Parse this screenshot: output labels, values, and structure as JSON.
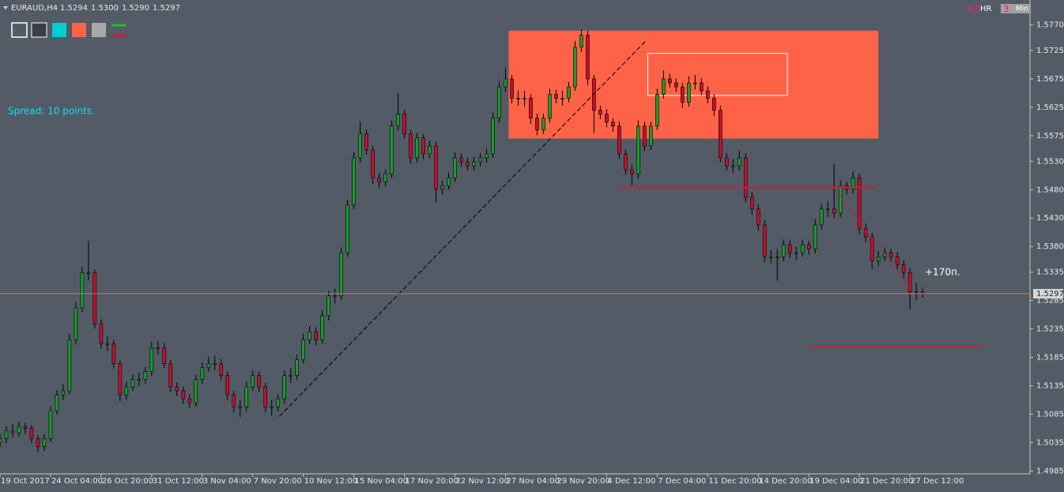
{
  "chart_data": {
    "type": "candlestick",
    "title": "EURAUD,H4",
    "quote": [
      1.5294,
      {
        "value": 1.53,
        "label": "1.5300"
      },
      {
        "value": 1.529,
        "label": "1.5290"
      },
      1.5297
    ],
    "toolbar": [
      "03",
      "HR",
      "3",
      "Min"
    ],
    "annotations": [
      {
        "text": "Spread: 10 points.",
        "color": "#00e5ee"
      },
      {
        "text": "+170п.",
        "color": "#ffffff"
      }
    ],
    "bull_color": "#1a9c2a",
    "bear_color": "#c8102e",
    "wick_color": "#000000",
    "price_line_color": "#ff6a1a",
    "xlim": [
      0,
      163
    ],
    "ylim": [
      1.498,
      1.5775
    ],
    "yticks": [
      {
        "value": 1.577,
        "label": "1.5770"
      },
      1.5725,
      1.5675,
      1.5625,
      1.5575,
      {
        "value": 1.553,
        "label": "1.5530"
      },
      {
        "value": 1.548,
        "label": "1.5480"
      },
      {
        "value": 1.543,
        "label": "1.5430"
      },
      {
        "value": 1.538,
        "label": "1.5380"
      },
      1.5335,
      1.5285,
      1.5235,
      1.5185,
      1.5135,
      1.5085,
      1.5035,
      1.4985
    ],
    "xticks": [
      {
        "value": 0,
        "label": "19 Oct 2017"
      },
      {
        "value": 8,
        "label": "24 Oct 04:00"
      },
      {
        "value": 16,
        "label": "26 Oct 20:00"
      },
      {
        "value": 24,
        "label": "31 Oct 12:00"
      },
      {
        "value": 32,
        "label": "3 Nov 04:00"
      },
      {
        "value": 40,
        "label": "7 Nov 20:00"
      },
      {
        "value": 48,
        "label": "10 Nov 12:00"
      },
      {
        "value": 56,
        "label": "15 Nov 04:00"
      },
      {
        "value": 64,
        "label": "17 Nov 20:00"
      },
      {
        "value": 72,
        "label": "22 Nov 12:00"
      },
      {
        "value": 80,
        "label": "27 Nov 04:00"
      },
      {
        "value": 88,
        "label": "29 Nov 20:00"
      },
      {
        "value": 96,
        "label": "4 Dec 12:00"
      },
      {
        "value": 104,
        "label": "7 Dec 04:00"
      },
      {
        "value": 112,
        "label": "11 Dec 20:00"
      },
      {
        "value": 120,
        "label": "14 Dec 20:00"
      },
      {
        "value": 128,
        "label": "19 Dec 04:00"
      },
      {
        "value": 136,
        "label": "21 Dec 20:00"
      },
      {
        "value": 144,
        "label": "27 Dec 12:00"
      }
    ],
    "open": [
      1.5035,
      1.5042,
      1.5056,
      1.5052,
      1.5063,
      1.506,
      1.5042,
      1.5028,
      1.5042,
      1.5091,
      1.5119,
      1.5126,
      1.5216,
      1.5272,
      1.5334,
      1.5334,
      1.5244,
      1.5209,
      1.5209,
      1.5174,
      1.5119,
      1.5133,
      1.5146,
      1.5146,
      1.516,
      1.5202,
      1.5202,
      1.5174,
      1.5133,
      1.5126,
      1.5112,
      1.5105,
      1.5146,
      1.5167,
      1.5174,
      1.5174,
      1.5153,
      1.5119,
      1.5098,
      1.5098,
      1.5133,
      1.5153,
      1.5133,
      1.5098,
      1.5098,
      1.5112,
      1.5153,
      1.5153,
      1.5181,
      1.5216,
      1.523,
      1.5216,
      1.5258,
      1.5293,
      1.5293,
      1.5369,
      1.5453,
      1.5536,
      1.5578,
      1.555,
      1.5501,
      1.5494,
      1.5508,
      1.5592,
      1.5613,
      1.5578,
      1.5536,
      1.5571,
      1.5543,
      1.5557,
      1.5481,
      1.5487,
      1.5501,
      1.5536,
      1.5529,
      1.5522,
      1.5529,
      1.5536,
      1.5543,
      1.5606,
      1.5661,
      1.5675,
      1.5641,
      1.5641,
      1.5641,
      1.5606,
      1.5585,
      1.5606,
      1.5648,
      1.5641,
      1.5641,
      1.5661,
      1.5731,
      1.5752,
      1.5675,
      1.562,
      1.5613,
      1.5599,
      1.5592,
      1.5543,
      1.5515,
      1.5508,
      1.5592,
      1.5557,
      1.5592,
      1.5648,
      1.5675,
      1.5668,
      1.5661,
      1.5634,
      1.5668,
      1.5668,
      1.5654,
      1.5641,
      1.562,
      1.5536,
      1.5522,
      1.5522,
      1.5536,
      1.5467,
      1.5446,
      1.5418,
      1.5362,
      1.5362,
      1.5362,
      1.5383,
      1.5369,
      1.5369,
      1.5383,
      1.5376,
      1.5418,
      1.5446,
      1.5446,
      1.5439,
      1.5487,
      1.5481,
      1.5501,
      1.5411,
      1.5397,
      1.5355,
      1.5362,
      1.5369,
      1.5362,
      1.5348,
      1.5334,
      1.53,
      1.53
    ],
    "high": [
      1.505,
      1.5064,
      1.5068,
      1.5072,
      1.507,
      1.5066,
      1.5048,
      1.505,
      1.5099,
      1.5127,
      1.5138,
      1.5226,
      1.5282,
      1.5345,
      1.539,
      1.534,
      1.5252,
      1.5222,
      1.5216,
      1.518,
      1.5142,
      1.5155,
      1.5158,
      1.5168,
      1.5212,
      1.5214,
      1.521,
      1.518,
      1.5141,
      1.5134,
      1.512,
      1.5154,
      1.5176,
      1.5186,
      1.5188,
      1.5182,
      1.516,
      1.5126,
      1.511,
      1.5142,
      1.5162,
      1.516,
      1.514,
      1.511,
      1.512,
      1.5162,
      1.5166,
      1.519,
      1.5226,
      1.524,
      1.5238,
      1.5268,
      1.5302,
      1.5306,
      1.5378,
      1.5462,
      1.5546,
      1.56,
      1.5586,
      1.5558,
      1.551,
      1.5516,
      1.5602,
      1.565,
      1.562,
      1.5585,
      1.558,
      1.5578,
      1.5566,
      1.5564,
      1.5496,
      1.551,
      1.5546,
      1.5544,
      1.5536,
      1.5538,
      1.5545,
      1.5552,
      1.5616,
      1.5672,
      1.5695,
      1.5682,
      1.5655,
      1.5654,
      1.5648,
      1.5614,
      1.5614,
      1.5658,
      1.5656,
      1.5654,
      1.567,
      1.5742,
      1.5762,
      1.576,
      1.5682,
      1.5628,
      1.5622,
      1.5606,
      1.56,
      1.555,
      1.5524,
      1.5602,
      1.56,
      1.56,
      1.5658,
      1.569,
      1.5684,
      1.5676,
      1.5668,
      1.568,
      1.5682,
      1.5676,
      1.5662,
      1.5648,
      1.5628,
      1.5544,
      1.5534,
      1.5548,
      1.5544,
      1.5476,
      1.5454,
      1.5426,
      1.5374,
      1.5376,
      1.5392,
      1.5392,
      1.538,
      1.5392,
      1.539,
      1.5428,
      1.5456,
      1.546,
      1.5525,
      1.5496,
      1.5494,
      1.5512,
      1.5508,
      1.542,
      1.5404,
      1.5372,
      1.5378,
      1.5376,
      1.537,
      1.5356,
      1.5342,
      1.5316,
      1.5308
    ],
    "low": [
      1.5027,
      1.5034,
      1.5044,
      1.5045,
      1.505,
      1.5034,
      1.5018,
      1.502,
      1.5036,
      1.5084,
      1.511,
      1.512,
      1.5208,
      1.5265,
      1.532,
      1.5236,
      1.52,
      1.5196,
      1.5165,
      1.5108,
      1.511,
      1.5126,
      1.5134,
      1.5138,
      1.5152,
      1.519,
      1.5166,
      1.5124,
      1.5117,
      1.5103,
      1.5096,
      1.5098,
      1.5138,
      1.516,
      1.5162,
      1.5144,
      1.511,
      1.5088,
      1.508,
      1.509,
      1.5126,
      1.5124,
      1.5088,
      1.5082,
      1.509,
      1.5104,
      1.514,
      1.5146,
      1.5174,
      1.5208,
      1.5206,
      1.5209,
      1.525,
      1.528,
      1.5286,
      1.5362,
      1.5446,
      1.5528,
      1.5542,
      1.549,
      1.5484,
      1.5486,
      1.55,
      1.5584,
      1.557,
      1.5526,
      1.5528,
      1.5534,
      1.5536,
      1.5458,
      1.5472,
      1.548,
      1.5494,
      1.552,
      1.5514,
      1.5514,
      1.5521,
      1.5528,
      1.5536,
      1.5598,
      1.5652,
      1.5632,
      1.5628,
      1.5626,
      1.5596,
      1.5576,
      1.5578,
      1.5598,
      1.5632,
      1.5628,
      1.5634,
      1.5654,
      1.5722,
      1.5664,
      1.558,
      1.5604,
      1.559,
      1.5582,
      1.5534,
      1.5506,
      1.5488,
      1.55,
      1.5548,
      1.555,
      1.5585,
      1.564,
      1.566,
      1.5652,
      1.5624,
      1.5626,
      1.5656,
      1.5646,
      1.5632,
      1.561,
      1.5528,
      1.5514,
      1.551,
      1.5514,
      1.5458,
      1.5436,
      1.5408,
      1.5352,
      1.535,
      1.532,
      1.5354,
      1.536,
      1.5356,
      1.5362,
      1.5366,
      1.5368,
      1.541,
      1.5432,
      1.543,
      1.5432,
      1.5472,
      1.5474,
      1.5402,
      1.5388,
      1.534,
      1.5346,
      1.5354,
      1.5354,
      1.534,
      1.5324,
      1.527,
      1.5286,
      1.529
    ],
    "close": [
      1.5042,
      1.5056,
      1.5052,
      1.5063,
      1.506,
      1.5042,
      1.5028,
      1.5042,
      1.5091,
      1.5119,
      1.5126,
      1.5216,
      1.5272,
      1.5334,
      1.5334,
      1.5244,
      1.5209,
      1.5209,
      1.5174,
      1.5119,
      1.5133,
      1.5146,
      1.5146,
      1.516,
      1.5202,
      1.5202,
      1.5174,
      1.5133,
      1.5126,
      1.5112,
      1.5105,
      1.5146,
      1.5167,
      1.5174,
      1.5174,
      1.5153,
      1.5119,
      1.5098,
      1.5098,
      1.5133,
      1.5153,
      1.5133,
      1.5098,
      1.5098,
      1.5112,
      1.5153,
      1.5153,
      1.5181,
      1.5216,
      1.523,
      1.5216,
      1.5258,
      1.5293,
      1.5293,
      1.5369,
      1.5453,
      1.5536,
      1.5578,
      1.555,
      1.5501,
      1.5494,
      1.5508,
      1.5592,
      1.5613,
      1.5578,
      1.5536,
      1.5571,
      1.5543,
      1.5557,
      1.5481,
      1.5487,
      1.5501,
      1.5536,
      1.5529,
      1.5522,
      1.5529,
      1.5536,
      1.5543,
      1.5606,
      1.5661,
      1.5675,
      1.5641,
      1.5641,
      1.5641,
      1.5606,
      1.5585,
      1.5606,
      1.5648,
      1.5641,
      1.5641,
      1.5661,
      1.5731,
      1.5752,
      1.5675,
      1.562,
      1.5613,
      1.5599,
      1.5592,
      1.5543,
      1.5515,
      1.5508,
      1.5592,
      1.5557,
      1.5592,
      1.5648,
      1.5675,
      1.5668,
      1.5661,
      1.5634,
      1.5668,
      1.5668,
      1.5654,
      1.5641,
      1.562,
      1.5536,
      1.5522,
      1.5522,
      1.5536,
      1.5467,
      1.5446,
      1.5418,
      1.5362,
      1.5362,
      1.5362,
      1.5383,
      1.5369,
      1.5369,
      1.5383,
      1.5376,
      1.5418,
      1.5446,
      1.5446,
      1.5439,
      1.5487,
      1.5481,
      1.5501,
      1.5411,
      1.5397,
      1.5355,
      1.5362,
      1.5369,
      1.5362,
      1.5348,
      1.5334,
      1.53,
      1.53,
      1.5297
    ],
    "rectangles": [
      {
        "x": [
          80.5,
          139
        ],
        "y": [
          1.557,
          1.576
        ],
        "color": "#ff6347",
        "outline": false
      },
      {
        "x": [
          102.5,
          124.6
        ],
        "y": [
          1.5646,
          1.572
        ],
        "color": "#ffffff",
        "outline": true
      }
    ],
    "segments": [
      {
        "x": [
          98.2,
          139
        ],
        "y": [
          1.5484,
          1.5484
        ],
        "color": "#dc143c",
        "dash": false
      },
      {
        "x": [
          128,
          155.5
        ],
        "y": [
          1.5205,
          1.5205
        ],
        "color": "#dc143c",
        "dash": false
      },
      {
        "x": [
          44.2,
          102.2
        ],
        "y": [
          1.5081,
          1.5742
        ],
        "color": "#000000",
        "dash": true
      },
      {
        "x": [
          132.2,
          144.1
        ],
        "y": [
          1.548,
          1.5304
        ],
        "color": "#dc143c",
        "dash": true
      }
    ]
  }
}
